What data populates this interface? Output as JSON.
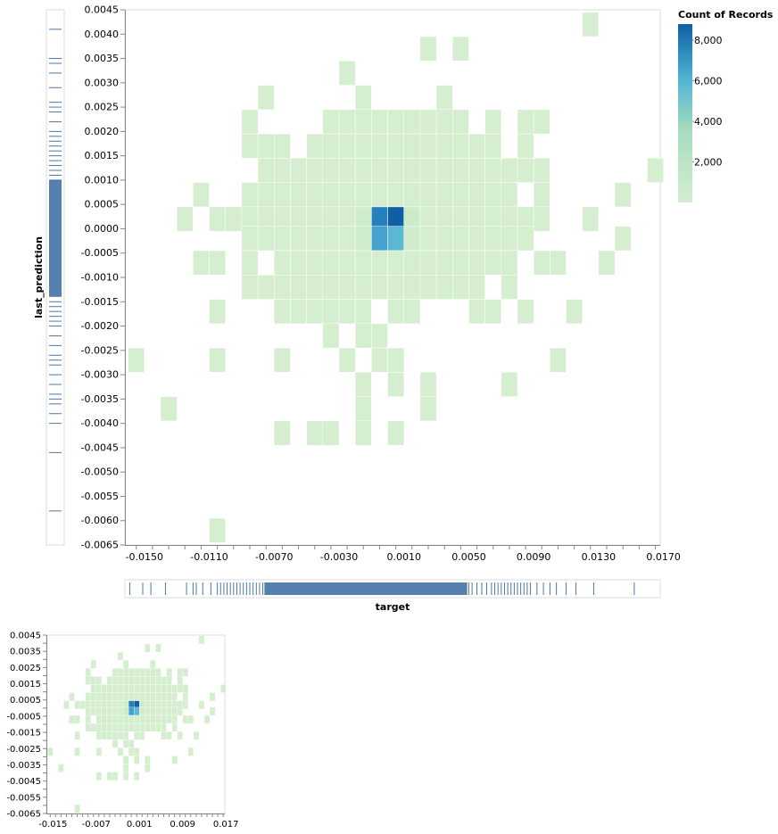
{
  "chart_data": {
    "type": "heatmap",
    "xlabel": "target",
    "ylabel": "last_prediction",
    "x_ticks": [
      "-0.0150",
      "-0.0110",
      "-0.0070",
      "-0.0030",
      "0.0010",
      "0.0050",
      "0.0090",
      "0.0130",
      "0.0170"
    ],
    "y_ticks": [
      "0.0045",
      "0.0040",
      "0.0035",
      "0.0030",
      "0.0025",
      "0.0020",
      "0.0015",
      "0.0010",
      "0.0005",
      "0.0000",
      "-0.0005",
      "-0.0010",
      "-0.0015",
      "-0.0020",
      "-0.0025",
      "-0.0030",
      "-0.0035",
      "-0.0040",
      "-0.0045",
      "-0.0050",
      "-0.0055",
      "-0.0060",
      "-0.0065"
    ],
    "xlim": [
      -0.0162,
      0.0168
    ],
    "ylim": [
      -0.0065,
      0.0045
    ],
    "bin_step": {
      "x": 0.001,
      "y": 0.0005
    },
    "legend": {
      "title": "Count of Records",
      "ticks": [
        "8,000",
        "6,000",
        "4,000",
        "2,000"
      ],
      "range": [
        0,
        8800
      ],
      "color_low": "#d4eecf",
      "color_high": "#0e5fa6"
    },
    "cells": [
      {
        "x": 0.0125,
        "y": 0.0042,
        "count": 20
      },
      {
        "x": 0.0025,
        "y": 0.0037,
        "count": 20
      },
      {
        "x": 0.0045,
        "y": 0.0037,
        "count": 20
      },
      {
        "x": -0.0025,
        "y": 0.0032,
        "count": 20
      },
      {
        "x": -0.0075,
        "y": 0.0027,
        "count": 20
      },
      {
        "x": -0.0015,
        "y": 0.0027,
        "count": 20
      },
      {
        "x": 0.0035,
        "y": 0.0027,
        "count": 20
      },
      {
        "x": -0.0085,
        "y": 0.0022,
        "count": 20
      },
      {
        "x": -0.0035,
        "y": 0.0022,
        "count": 20
      },
      {
        "x": -0.0025,
        "y": 0.0022,
        "count": 20
      },
      {
        "x": -0.0015,
        "y": 0.0022,
        "count": 20
      },
      {
        "x": -0.0005,
        "y": 0.0022,
        "count": 20
      },
      {
        "x": 0.0005,
        "y": 0.0022,
        "count": 20
      },
      {
        "x": 0.0015,
        "y": 0.0022,
        "count": 20
      },
      {
        "x": 0.0025,
        "y": 0.0022,
        "count": 20
      },
      {
        "x": 0.0035,
        "y": 0.0022,
        "count": 20
      },
      {
        "x": 0.0045,
        "y": 0.0022,
        "count": 20
      },
      {
        "x": 0.0065,
        "y": 0.0022,
        "count": 20
      },
      {
        "x": 0.0085,
        "y": 0.0022,
        "count": 20
      },
      {
        "x": 0.0095,
        "y": 0.0022,
        "count": 20
      },
      {
        "x": -0.0085,
        "y": 0.0017,
        "count": 20
      },
      {
        "x": -0.0075,
        "y": 0.0017,
        "count": 20
      },
      {
        "x": -0.0065,
        "y": 0.0017,
        "count": 20
      },
      {
        "x": -0.0045,
        "y": 0.0017,
        "count": 20
      },
      {
        "x": -0.0035,
        "y": 0.0017,
        "count": 20
      },
      {
        "x": -0.0025,
        "y": 0.0017,
        "count": 20
      },
      {
        "x": -0.0015,
        "y": 0.0017,
        "count": 20
      },
      {
        "x": -0.0005,
        "y": 0.0017,
        "count": 20
      },
      {
        "x": 0.0005,
        "y": 0.0017,
        "count": 20
      },
      {
        "x": 0.0015,
        "y": 0.0017,
        "count": 20
      },
      {
        "x": 0.0025,
        "y": 0.0017,
        "count": 20
      },
      {
        "x": 0.0035,
        "y": 0.0017,
        "count": 20
      },
      {
        "x": 0.0045,
        "y": 0.0017,
        "count": 20
      },
      {
        "x": 0.0055,
        "y": 0.0017,
        "count": 20
      },
      {
        "x": 0.0065,
        "y": 0.0017,
        "count": 20
      },
      {
        "x": 0.0085,
        "y": 0.0017,
        "count": 20
      },
      {
        "x": -0.0075,
        "y": 0.0012,
        "count": 20
      },
      {
        "x": -0.0065,
        "y": 0.0012,
        "count": 20
      },
      {
        "x": -0.0055,
        "y": 0.0012,
        "count": 20
      },
      {
        "x": -0.0045,
        "y": 0.0012,
        "count": 20
      },
      {
        "x": -0.0035,
        "y": 0.0012,
        "count": 20
      },
      {
        "x": -0.0025,
        "y": 0.0012,
        "count": 20
      },
      {
        "x": -0.0015,
        "y": 0.0012,
        "count": 20
      },
      {
        "x": -0.0005,
        "y": 0.0012,
        "count": 20
      },
      {
        "x": 0.0005,
        "y": 0.0012,
        "count": 20
      },
      {
        "x": 0.0015,
        "y": 0.0012,
        "count": 20
      },
      {
        "x": 0.0025,
        "y": 0.0012,
        "count": 20
      },
      {
        "x": 0.0035,
        "y": 0.0012,
        "count": 20
      },
      {
        "x": 0.0045,
        "y": 0.0012,
        "count": 20
      },
      {
        "x": 0.0055,
        "y": 0.0012,
        "count": 20
      },
      {
        "x": 0.0065,
        "y": 0.0012,
        "count": 20
      },
      {
        "x": 0.0075,
        "y": 0.0012,
        "count": 20
      },
      {
        "x": 0.0085,
        "y": 0.0012,
        "count": 20
      },
      {
        "x": 0.0095,
        "y": 0.0012,
        "count": 20
      },
      {
        "x": 0.0165,
        "y": 0.0012,
        "count": 20
      },
      {
        "x": -0.0115,
        "y": 0.0007,
        "count": 20
      },
      {
        "x": -0.0085,
        "y": 0.0007,
        "count": 20
      },
      {
        "x": -0.0075,
        "y": 0.0007,
        "count": 20
      },
      {
        "x": -0.0065,
        "y": 0.0007,
        "count": 20
      },
      {
        "x": -0.0055,
        "y": 0.0007,
        "count": 20
      },
      {
        "x": -0.0045,
        "y": 0.0007,
        "count": 20
      },
      {
        "x": -0.0035,
        "y": 0.0007,
        "count": 20
      },
      {
        "x": -0.0025,
        "y": 0.0007,
        "count": 20
      },
      {
        "x": -0.0015,
        "y": 0.0007,
        "count": 20
      },
      {
        "x": -0.0005,
        "y": 0.0007,
        "count": 20
      },
      {
        "x": 0.0005,
        "y": 0.0007,
        "count": 20
      },
      {
        "x": 0.0015,
        "y": 0.0007,
        "count": 20
      },
      {
        "x": 0.0025,
        "y": 0.0007,
        "count": 20
      },
      {
        "x": 0.0035,
        "y": 0.0007,
        "count": 20
      },
      {
        "x": 0.0045,
        "y": 0.0007,
        "count": 20
      },
      {
        "x": 0.0055,
        "y": 0.0007,
        "count": 20
      },
      {
        "x": 0.0065,
        "y": 0.0007,
        "count": 20
      },
      {
        "x": 0.0075,
        "y": 0.0007,
        "count": 20
      },
      {
        "x": 0.0095,
        "y": 0.0007,
        "count": 20
      },
      {
        "x": 0.0145,
        "y": 0.0007,
        "count": 20
      },
      {
        "x": -0.0125,
        "y": 0.0002,
        "count": 20
      },
      {
        "x": -0.0105,
        "y": 0.0002,
        "count": 20
      },
      {
        "x": -0.0095,
        "y": 0.0002,
        "count": 20
      },
      {
        "x": -0.0085,
        "y": 0.0002,
        "count": 20
      },
      {
        "x": -0.0075,
        "y": 0.0002,
        "count": 20
      },
      {
        "x": -0.0065,
        "y": 0.0002,
        "count": 20
      },
      {
        "x": -0.0055,
        "y": 0.0002,
        "count": 20
      },
      {
        "x": -0.0045,
        "y": 0.0002,
        "count": 20
      },
      {
        "x": -0.0035,
        "y": 0.0002,
        "count": 20
      },
      {
        "x": -0.0025,
        "y": 0.0002,
        "count": 20
      },
      {
        "x": -0.0015,
        "y": 0.0002,
        "count": 600
      },
      {
        "x": -0.0005,
        "y": 0.0002,
        "count": 7200
      },
      {
        "x": 0.0005,
        "y": 0.0002,
        "count": 8800
      },
      {
        "x": 0.0015,
        "y": 0.0002,
        "count": 900
      },
      {
        "x": 0.0025,
        "y": 0.0002,
        "count": 20
      },
      {
        "x": 0.0035,
        "y": 0.0002,
        "count": 20
      },
      {
        "x": 0.0045,
        "y": 0.0002,
        "count": 20
      },
      {
        "x": 0.0055,
        "y": 0.0002,
        "count": 20
      },
      {
        "x": 0.0065,
        "y": 0.0002,
        "count": 20
      },
      {
        "x": 0.0075,
        "y": 0.0002,
        "count": 20
      },
      {
        "x": 0.0085,
        "y": 0.0002,
        "count": 20
      },
      {
        "x": 0.0095,
        "y": 0.0002,
        "count": 20
      },
      {
        "x": 0.0125,
        "y": 0.0002,
        "count": 20
      },
      {
        "x": -0.0085,
        "y": -0.0002,
        "count": 20
      },
      {
        "x": -0.0075,
        "y": -0.0002,
        "count": 20
      },
      {
        "x": -0.0065,
        "y": -0.0002,
        "count": 20
      },
      {
        "x": -0.0055,
        "y": -0.0002,
        "count": 20
      },
      {
        "x": -0.0045,
        "y": -0.0002,
        "count": 20
      },
      {
        "x": -0.0035,
        "y": -0.0002,
        "count": 20
      },
      {
        "x": -0.0025,
        "y": -0.0002,
        "count": 20
      },
      {
        "x": -0.0015,
        "y": -0.0002,
        "count": 700
      },
      {
        "x": -0.0005,
        "y": -0.0002,
        "count": 5700
      },
      {
        "x": 0.0005,
        "y": -0.0002,
        "count": 4800
      },
      {
        "x": 0.0015,
        "y": -0.0002,
        "count": 400
      },
      {
        "x": 0.0025,
        "y": -0.0002,
        "count": 20
      },
      {
        "x": 0.0035,
        "y": -0.0002,
        "count": 20
      },
      {
        "x": 0.0045,
        "y": -0.0002,
        "count": 20
      },
      {
        "x": 0.0055,
        "y": -0.0002,
        "count": 20
      },
      {
        "x": 0.0065,
        "y": -0.0002,
        "count": 20
      },
      {
        "x": 0.0075,
        "y": -0.0002,
        "count": 20
      },
      {
        "x": 0.0085,
        "y": -0.0002,
        "count": 20
      },
      {
        "x": 0.0145,
        "y": -0.0002,
        "count": 20
      },
      {
        "x": -0.0115,
        "y": -0.0007,
        "count": 20
      },
      {
        "x": -0.0105,
        "y": -0.0007,
        "count": 20
      },
      {
        "x": -0.0085,
        "y": -0.0007,
        "count": 20
      },
      {
        "x": -0.0065,
        "y": -0.0007,
        "count": 20
      },
      {
        "x": -0.0055,
        "y": -0.0007,
        "count": 20
      },
      {
        "x": -0.0045,
        "y": -0.0007,
        "count": 20
      },
      {
        "x": -0.0035,
        "y": -0.0007,
        "count": 20
      },
      {
        "x": -0.0025,
        "y": -0.0007,
        "count": 20
      },
      {
        "x": -0.0015,
        "y": -0.0007,
        "count": 20
      },
      {
        "x": -0.0005,
        "y": -0.0007,
        "count": 20
      },
      {
        "x": 0.0005,
        "y": -0.0007,
        "count": 20
      },
      {
        "x": 0.0015,
        "y": -0.0007,
        "count": 20
      },
      {
        "x": 0.0025,
        "y": -0.0007,
        "count": 20
      },
      {
        "x": 0.0035,
        "y": -0.0007,
        "count": 20
      },
      {
        "x": 0.0045,
        "y": -0.0007,
        "count": 20
      },
      {
        "x": 0.0055,
        "y": -0.0007,
        "count": 20
      },
      {
        "x": 0.0065,
        "y": -0.0007,
        "count": 20
      },
      {
        "x": 0.0075,
        "y": -0.0007,
        "count": 20
      },
      {
        "x": 0.0095,
        "y": -0.0007,
        "count": 20
      },
      {
        "x": 0.0105,
        "y": -0.0007,
        "count": 20
      },
      {
        "x": 0.0135,
        "y": -0.0007,
        "count": 20
      },
      {
        "x": -0.0085,
        "y": -0.0012,
        "count": 20
      },
      {
        "x": -0.0075,
        "y": -0.0012,
        "count": 20
      },
      {
        "x": -0.0065,
        "y": -0.0012,
        "count": 20
      },
      {
        "x": -0.0055,
        "y": -0.0012,
        "count": 20
      },
      {
        "x": -0.0045,
        "y": -0.0012,
        "count": 20
      },
      {
        "x": -0.0035,
        "y": -0.0012,
        "count": 20
      },
      {
        "x": -0.0025,
        "y": -0.0012,
        "count": 20
      },
      {
        "x": -0.0015,
        "y": -0.0012,
        "count": 20
      },
      {
        "x": -0.0005,
        "y": -0.0012,
        "count": 20
      },
      {
        "x": 0.0005,
        "y": -0.0012,
        "count": 20
      },
      {
        "x": 0.0015,
        "y": -0.0012,
        "count": 20
      },
      {
        "x": 0.0025,
        "y": -0.0012,
        "count": 20
      },
      {
        "x": 0.0035,
        "y": -0.0012,
        "count": 20
      },
      {
        "x": 0.0045,
        "y": -0.0012,
        "count": 20
      },
      {
        "x": 0.0055,
        "y": -0.0012,
        "count": 20
      },
      {
        "x": 0.0075,
        "y": -0.0012,
        "count": 20
      },
      {
        "x": -0.0105,
        "y": -0.0017,
        "count": 20
      },
      {
        "x": -0.0065,
        "y": -0.0017,
        "count": 20
      },
      {
        "x": -0.0055,
        "y": -0.0017,
        "count": 20
      },
      {
        "x": -0.0045,
        "y": -0.0017,
        "count": 20
      },
      {
        "x": -0.0035,
        "y": -0.0017,
        "count": 20
      },
      {
        "x": -0.0025,
        "y": -0.0017,
        "count": 20
      },
      {
        "x": -0.0015,
        "y": -0.0017,
        "count": 20
      },
      {
        "x": 0.0005,
        "y": -0.0017,
        "count": 20
      },
      {
        "x": 0.0015,
        "y": -0.0017,
        "count": 20
      },
      {
        "x": 0.0055,
        "y": -0.0017,
        "count": 20
      },
      {
        "x": 0.0065,
        "y": -0.0017,
        "count": 20
      },
      {
        "x": 0.0085,
        "y": -0.0017,
        "count": 20
      },
      {
        "x": 0.0115,
        "y": -0.0017,
        "count": 20
      },
      {
        "x": -0.0035,
        "y": -0.0022,
        "count": 20
      },
      {
        "x": -0.0015,
        "y": -0.0022,
        "count": 20
      },
      {
        "x": -0.0005,
        "y": -0.0022,
        "count": 20
      },
      {
        "x": -0.0155,
        "y": -0.0027,
        "count": 20
      },
      {
        "x": -0.0105,
        "y": -0.0027,
        "count": 20
      },
      {
        "x": -0.0065,
        "y": -0.0027,
        "count": 20
      },
      {
        "x": -0.0025,
        "y": -0.0027,
        "count": 20
      },
      {
        "x": -0.0005,
        "y": -0.0027,
        "count": 20
      },
      {
        "x": 0.0005,
        "y": -0.0027,
        "count": 20
      },
      {
        "x": 0.0105,
        "y": -0.0027,
        "count": 20
      },
      {
        "x": -0.0015,
        "y": -0.0032,
        "count": 20
      },
      {
        "x": 0.0005,
        "y": -0.0032,
        "count": 20
      },
      {
        "x": 0.0025,
        "y": -0.0032,
        "count": 20
      },
      {
        "x": 0.0075,
        "y": -0.0032,
        "count": 20
      },
      {
        "x": -0.0135,
        "y": -0.0037,
        "count": 20
      },
      {
        "x": -0.0015,
        "y": -0.0037,
        "count": 20
      },
      {
        "x": 0.0025,
        "y": -0.0037,
        "count": 20
      },
      {
        "x": -0.0065,
        "y": -0.0042,
        "count": 20
      },
      {
        "x": -0.0045,
        "y": -0.0042,
        "count": 20
      },
      {
        "x": -0.0035,
        "y": -0.0042,
        "count": 20
      },
      {
        "x": -0.0015,
        "y": -0.0042,
        "count": 20
      },
      {
        "x": 0.0005,
        "y": -0.0042,
        "count": 20
      },
      {
        "x": -0.0105,
        "y": -0.0062,
        "count": 20
      }
    ],
    "rug_x": [
      -0.0159,
      -0.0151,
      -0.0146,
      -0.0137,
      -0.0124,
      -0.012,
      -0.0118,
      -0.0114,
      -0.0109,
      -0.0105,
      -0.0103,
      -0.0101,
      -0.0099,
      -0.0097,
      -0.0095,
      -0.0093,
      -0.0091,
      -0.0089,
      -0.0087,
      -0.0085,
      -0.0083,
      -0.0081,
      -0.0079,
      -0.0077,
      0.005,
      0.0052,
      0.0055,
      0.0058,
      0.0061,
      0.0064,
      0.0066,
      0.0068,
      0.007,
      0.0072,
      0.0074,
      0.0076,
      0.0078,
      0.008,
      0.0082,
      0.0084,
      0.0086,
      0.0088,
      0.0092,
      0.0096,
      0.01,
      0.0104,
      0.011,
      0.0116,
      0.0127,
      0.0152
    ],
    "rug_x_dense": [
      -0.0076,
      0.0049
    ],
    "rug_y": [
      0.0041,
      0.0035,
      0.0034,
      0.0032,
      0.0029,
      0.0026,
      0.0025,
      0.0024,
      0.0022,
      0.002,
      0.0019,
      0.0018,
      0.0017,
      0.0016,
      0.0015,
      0.0014,
      0.0013,
      0.0012,
      0.0011,
      0.001,
      -0.0015,
      -0.0016,
      -0.0017,
      -0.0018,
      -0.0019,
      -0.002,
      -0.0022,
      -0.0024,
      -0.0026,
      -0.0027,
      -0.0028,
      -0.003,
      -0.0032,
      -0.0034,
      -0.0035,
      -0.0036,
      -0.0038,
      -0.004,
      -0.0046,
      -0.0058
    ],
    "rug_y_dense": [
      -0.0014,
      0.001
    ]
  }
}
